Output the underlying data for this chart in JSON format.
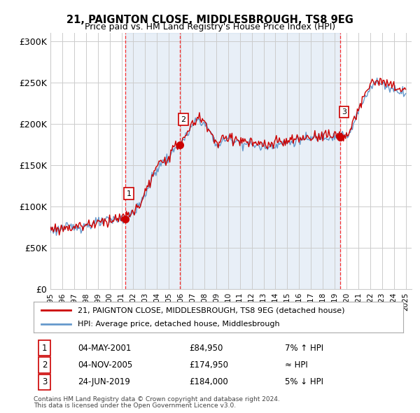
{
  "title1": "21, PAIGNTON CLOSE, MIDDLESBROUGH, TS8 9EG",
  "title2": "Price paid vs. HM Land Registry's House Price Index (HPI)",
  "xlabel": "",
  "ylabel": "",
  "ylim": [
    0,
    310000
  ],
  "yticks": [
    0,
    50000,
    100000,
    150000,
    200000,
    250000,
    300000
  ],
  "ytick_labels": [
    "£0",
    "£50K",
    "£100K",
    "£150K",
    "£200K",
    "£250K",
    "£300K"
  ],
  "hpi_color": "#6699cc",
  "price_color": "#cc0000",
  "bg_color": "#ddeeff",
  "plot_bg": "#ffffff",
  "grid_color": "#cccccc",
  "sale1_date": "2001-05-04",
  "sale1_price": 84950,
  "sale1_label": "04-MAY-2001",
  "sale1_amount": "£84,950",
  "sale1_relation": "7% ↑ HPI",
  "sale2_date": "2005-11-04",
  "sale2_price": 174950,
  "sale2_label": "04-NOV-2005",
  "sale2_amount": "£174,950",
  "sale2_relation": "≈ HPI",
  "sale3_date": "2019-06-24",
  "sale3_price": 184000,
  "sale3_label": "24-JUN-2019",
  "sale3_amount": "£184,000",
  "sale3_relation": "5% ↓ HPI",
  "legend_line1": "21, PAIGNTON CLOSE, MIDDLESBROUGH, TS8 9EG (detached house)",
  "legend_line2": "HPI: Average price, detached house, Middlesbrough",
  "footer1": "Contains HM Land Registry data © Crown copyright and database right 2024.",
  "footer2": "This data is licensed under the Open Government Licence v3.0."
}
